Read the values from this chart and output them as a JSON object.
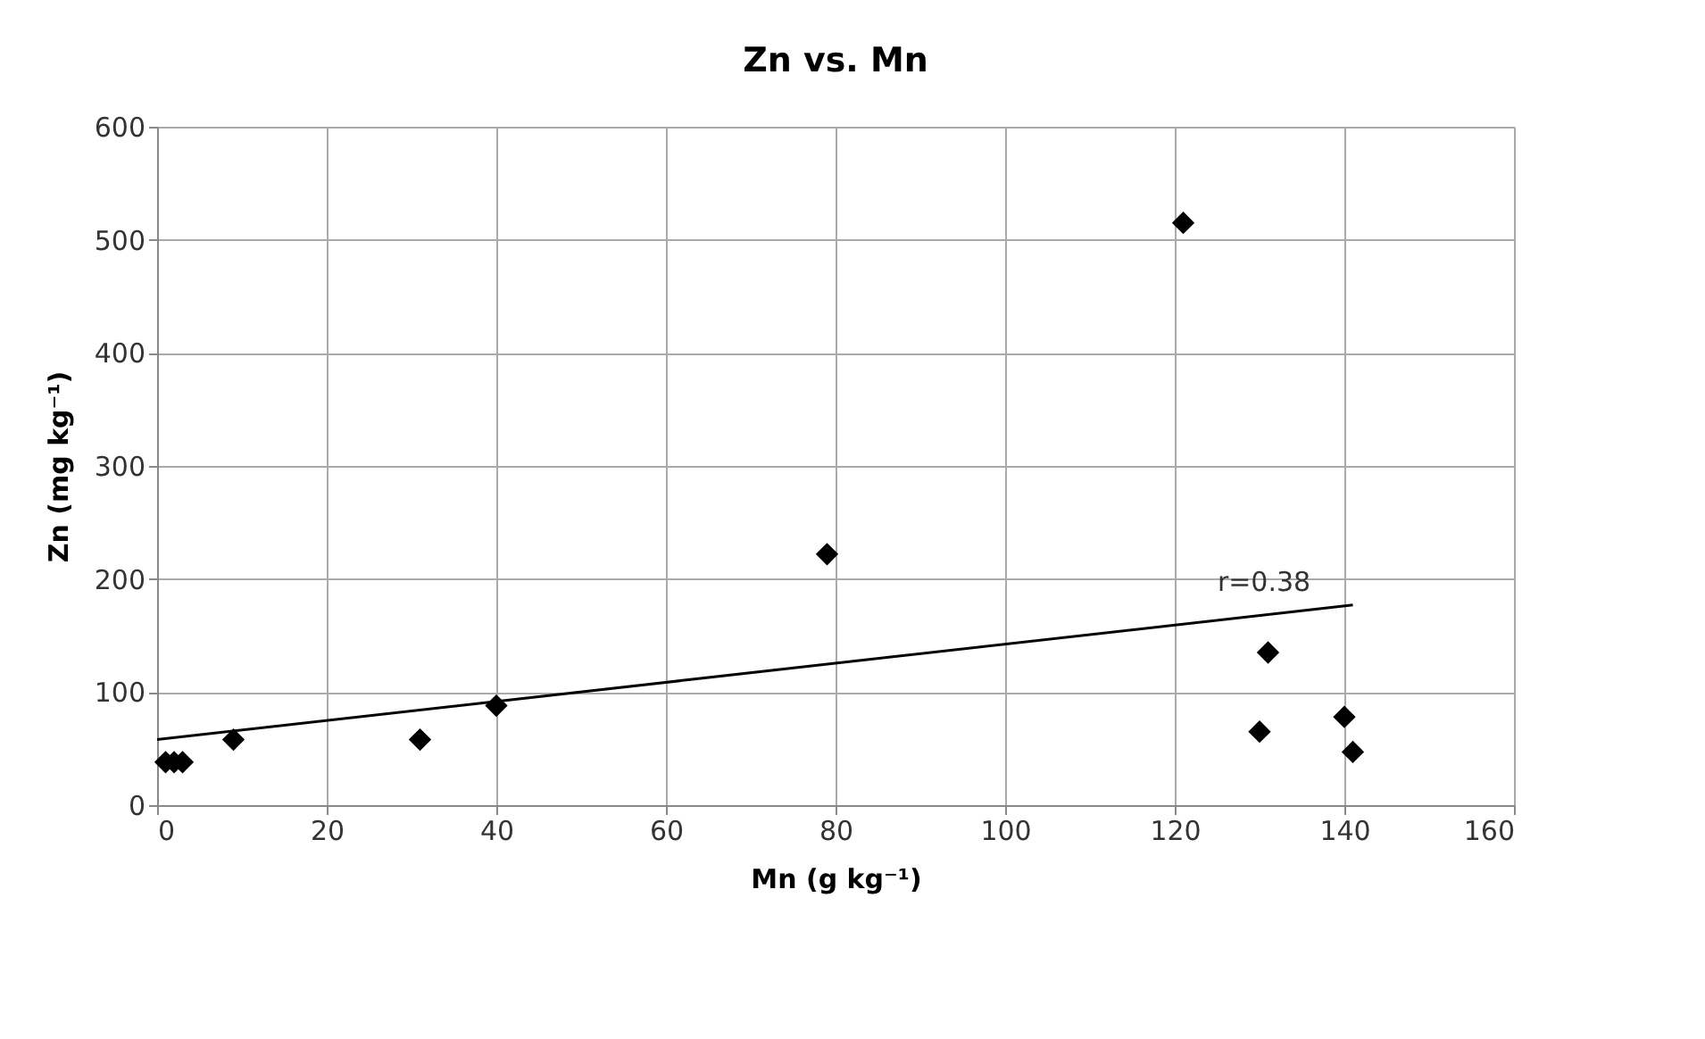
{
  "chart_data": {
    "type": "scatter",
    "title": "Zn vs. Mn",
    "xlabel": "Mn (g kg⁻¹)",
    "ylabel": "Zn (mg kg⁻¹)",
    "x": [
      1,
      2,
      3,
      9,
      31,
      40,
      79,
      121,
      131,
      130,
      140,
      141
    ],
    "series": [
      {
        "color": "#000000",
        "marker": "diamond",
        "values": [
          38,
          38,
          38,
          58,
          58,
          88,
          222,
          515,
          135,
          65,
          78,
          47
        ]
      },
      {
        "type": "line",
        "color": "#000000",
        "x": [
          0,
          141
        ],
        "values": [
          58,
          177
        ],
        "line_style": "solid",
        "marker": "none"
      }
    ],
    "annotations": [
      "r=0.38"
    ],
    "xlim": [
      0,
      160
    ],
    "xticks": [
      0,
      20,
      40,
      60,
      80,
      100,
      120,
      140,
      160
    ],
    "ylim": [
      0,
      600
    ],
    "yticks": [
      0,
      100,
      200,
      300,
      400,
      500,
      600
    ],
    "grid": true
  }
}
